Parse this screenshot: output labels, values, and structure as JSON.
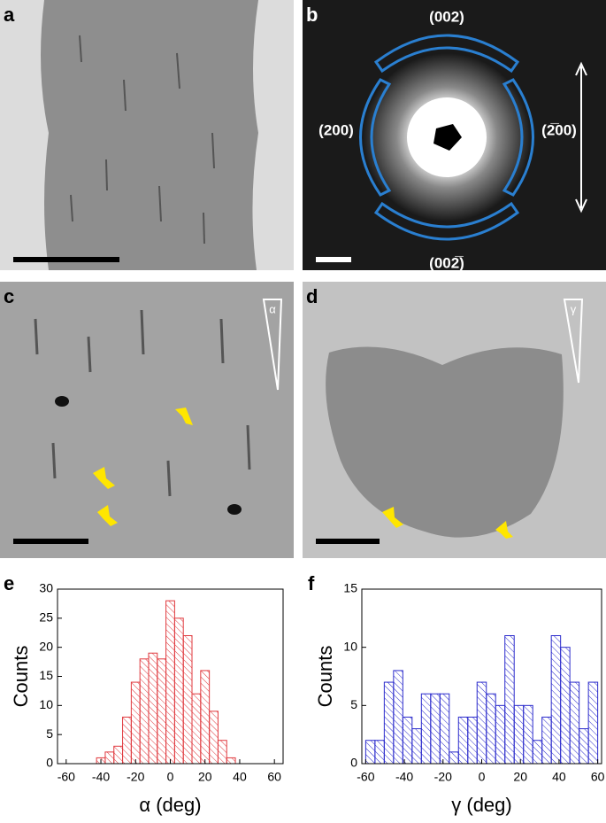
{
  "panels": {
    "labels": [
      "a",
      "b",
      "c",
      "d",
      "e",
      "f"
    ]
  },
  "diffraction": {
    "labels": [
      "(002)",
      "(200)",
      "(2̅00)",
      "(002̅)"
    ]
  },
  "angles": [
    "α",
    "γ"
  ],
  "chart_data": [
    {
      "type": "histogram",
      "xlabel": "α (deg)",
      "ylabel": "Counts",
      "color": "#e0393e",
      "bins": [
        -42.5,
        -37.5,
        -32.5,
        -27.5,
        -22.5,
        -17.5,
        -12.5,
        -7.5,
        -2.5,
        2.5,
        7.5,
        12.5,
        17.5,
        22.5,
        27.5,
        32.5,
        37.5
      ],
      "values": [
        1,
        2,
        3,
        8,
        14,
        18,
        19,
        18,
        28,
        25,
        22,
        12,
        16,
        9,
        4,
        1
      ],
      "xlim": [
        -65,
        65
      ],
      "ylim": [
        0,
        30
      ],
      "xticks": [
        -60,
        -40,
        -20,
        0,
        20,
        40,
        60
      ],
      "yticks": [
        0,
        5,
        10,
        15,
        20,
        25,
        30
      ]
    },
    {
      "type": "histogram",
      "xlabel": "γ (deg)",
      "ylabel": "Counts",
      "color": "#2b2bcc",
      "bins": [
        -60,
        -55.2,
        -50.4,
        -45.6,
        -40.8,
        -36,
        -31.2,
        -26.4,
        -21.6,
        -16.8,
        -12,
        -7.2,
        -2.4,
        2.4,
        7.2,
        12,
        16.8,
        21.6,
        26.4,
        31.2,
        36,
        40.8,
        45.6,
        50.4,
        55.2,
        60
      ],
      "values": [
        2,
        2,
        7,
        8,
        4,
        3,
        6,
        6,
        6,
        1,
        4,
        4,
        7,
        6,
        5,
        11,
        5,
        5,
        2,
        4,
        11,
        10,
        7,
        3,
        7
      ],
      "xlim": [
        -62,
        62
      ],
      "ylim": [
        0,
        15
      ],
      "xticks": [
        -60,
        -40,
        -20,
        0,
        20,
        40,
        60
      ],
      "yticks": [
        0,
        5,
        10,
        15
      ]
    }
  ]
}
